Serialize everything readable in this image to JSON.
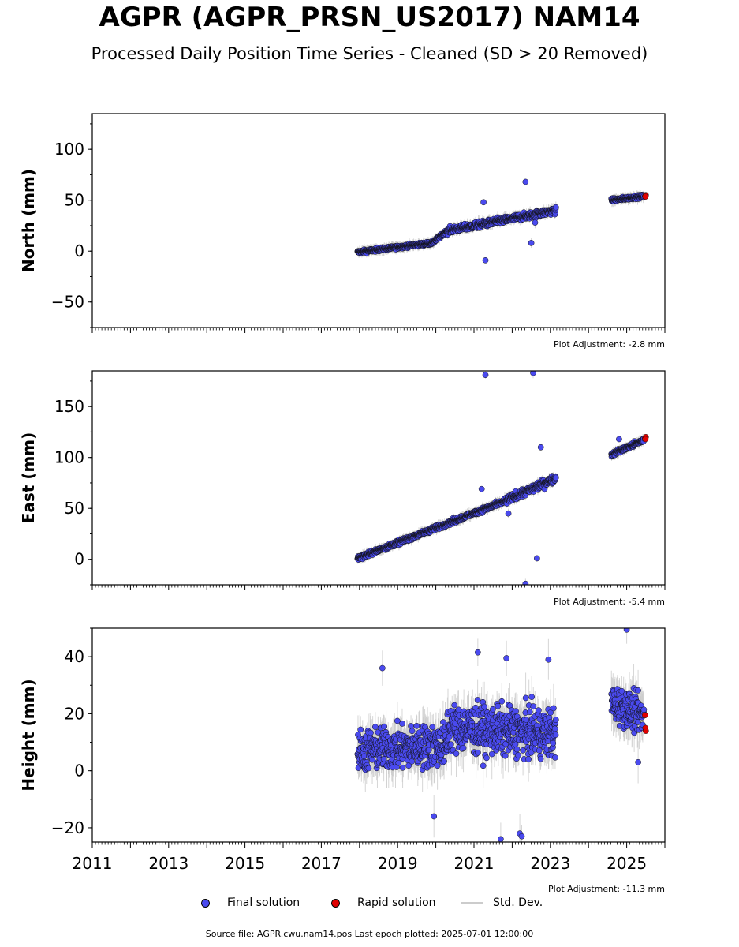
{
  "title": "AGPR (AGPR_PRSN_US2017) NAM14",
  "subtitle": "Processed Daily Position Time Series - Cleaned (SD > 20 Removed)",
  "colors": {
    "final": "#4a4aef",
    "rapid": "#e00000",
    "stddev": "#cccccc",
    "axis": "#000000"
  },
  "legend": {
    "final_label": "Final solution",
    "rapid_label": "Rapid solution",
    "std_label": "Std. Dev."
  },
  "source_text": "Source file: AGPR.cwu.nam14.pos  Last epoch plotted: 2025-07-01 12:00:00",
  "chart_data": [
    {
      "type": "scatter",
      "component": "north",
      "ylabel": "North (mm)",
      "ylim": [
        -75,
        135
      ],
      "yticks": [
        -50,
        0,
        50,
        100
      ],
      "yticklabels": [
        "−50",
        "0",
        "50",
        "100"
      ],
      "xlim": [
        2011,
        2026
      ],
      "adjustment": "Plot Adjustment: -2.8 mm",
      "segments": [
        {
          "from": 2017.95,
          "to": 2019.9,
          "y0": -1,
          "y1": 8,
          "noise": 1.5
        },
        {
          "from": 2019.9,
          "to": 2020.3,
          "y0": 8,
          "y1": 20,
          "noise": 1.5
        },
        {
          "from": 2020.3,
          "to": 2023.15,
          "y0": 20,
          "y1": 40,
          "noise": 3
        },
        {
          "from": 2024.6,
          "to": 2025.45,
          "y0": 50,
          "y1": 54,
          "noise": 1.5
        }
      ],
      "outliers": [
        [
          2021.25,
          48
        ],
        [
          2021.3,
          -9
        ],
        [
          2022.35,
          68
        ],
        [
          2022.5,
          8
        ],
        [
          2022.6,
          28
        ]
      ],
      "rapid": [
        [
          2025.48,
          54
        ],
        [
          2025.5,
          55
        ],
        [
          2025.49,
          53.5
        ]
      ]
    },
    {
      "type": "scatter",
      "component": "east",
      "ylabel": "East (mm)",
      "ylim": [
        -25,
        185
      ],
      "yticks": [
        0,
        50,
        100,
        150
      ],
      "yticklabels": [
        "0",
        "50",
        "100",
        "150"
      ],
      "xlim": [
        2011,
        2026
      ],
      "adjustment": "Plot Adjustment: -5.4 mm",
      "segments": [
        {
          "from": 2017.95,
          "to": 2021.8,
          "y0": 1,
          "y1": 57,
          "noise": 2
        },
        {
          "from": 2021.8,
          "to": 2023.15,
          "y0": 57,
          "y1": 80,
          "noise": 3.5
        },
        {
          "from": 2024.6,
          "to": 2025.45,
          "y0": 103,
          "y1": 117,
          "noise": 2
        }
      ],
      "outliers": [
        [
          2021.3,
          181
        ],
        [
          2022.55,
          183
        ],
        [
          2022.75,
          110
        ],
        [
          2022.65,
          1
        ],
        [
          2022.35,
          -24
        ],
        [
          2021.2,
          69
        ],
        [
          2021.9,
          45
        ],
        [
          2024.8,
          118
        ]
      ],
      "rapid": [
        [
          2025.48,
          119
        ],
        [
          2025.5,
          120
        ],
        [
          2025.49,
          118
        ]
      ]
    },
    {
      "type": "scatter",
      "component": "height",
      "ylabel": "Height (mm)",
      "ylim": [
        -25,
        50
      ],
      "yticks": [
        -20,
        0,
        20,
        40
      ],
      "yticklabels": [
        "−20",
        "0",
        "20",
        "40"
      ],
      "xlim": [
        2011,
        2026
      ],
      "xticks": [
        2011,
        2013,
        2015,
        2017,
        2019,
        2021,
        2023,
        2025
      ],
      "xticklabels": [
        "2011",
        "2013",
        "2015",
        "2017",
        "2019",
        "2021",
        "2023",
        "2025"
      ],
      "adjustment": "Plot Adjustment: -11.3 mm",
      "segments": [
        {
          "from": 2017.95,
          "to": 2020.3,
          "y0": 7,
          "y1": 9,
          "noise": 7
        },
        {
          "from": 2020.3,
          "to": 2023.15,
          "y0": 15,
          "y1": 13,
          "noise": 8
        },
        {
          "from": 2024.6,
          "to": 2025.45,
          "y0": 24,
          "y1": 19,
          "noise": 6
        }
      ],
      "outliers": [
        [
          2018.6,
          36
        ],
        [
          2019.95,
          -16
        ],
        [
          2021.1,
          41.5
        ],
        [
          2021.7,
          -24
        ],
        [
          2022.2,
          -22
        ],
        [
          2022.25,
          -23
        ],
        [
          2021.85,
          39.5
        ],
        [
          2022.95,
          39
        ],
        [
          2025.0,
          49.5
        ],
        [
          2025.3,
          3
        ]
      ],
      "rapid": [
        [
          2025.48,
          19.5
        ],
        [
          2025.49,
          15
        ],
        [
          2025.5,
          14
        ]
      ]
    }
  ]
}
